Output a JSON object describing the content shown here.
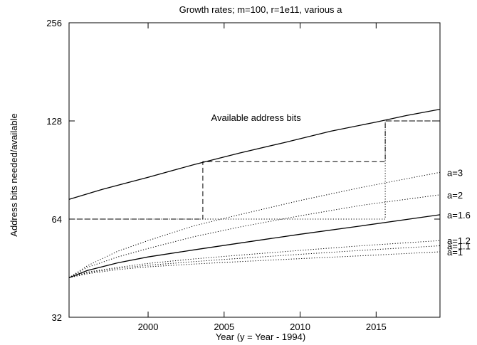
{
  "chart_data": {
    "type": "line",
    "title": "Growth rates; m=100, r=1e11, various a",
    "xlabel": "Year (y = Year - 1994)",
    "ylabel": "Address bits needed/available",
    "xlim": [
      1994.8,
      2019.2
    ],
    "ylim": [
      32,
      256
    ],
    "y_scale": "log2",
    "x_ticks": [
      2000,
      2005,
      2010,
      2015
    ],
    "y_ticks": [
      32,
      64,
      128,
      256
    ],
    "grid": false,
    "annotations": [
      {
        "text": "Available address bits",
        "x": 2007.1,
        "y": 128
      }
    ],
    "series": [
      {
        "name": "Available address bits",
        "style": "solid",
        "x": [
          1994.8,
          1997,
          2000,
          2003,
          2006,
          2009,
          2012,
          2015,
          2017,
          2019.2
        ],
        "y": [
          73.6,
          79,
          86,
          94,
          102,
          110,
          119,
          127,
          133,
          139
        ]
      },
      {
        "name": "",
        "style": "dashed",
        "x": [
          1994.8,
          2003.6,
          2003.6,
          2015.6,
          2015.6,
          2019.2
        ],
        "y": [
          64,
          64,
          96,
          96,
          128,
          128
        ]
      },
      {
        "name": "",
        "style": "dotted",
        "x": [
          1994.8,
          2015.6,
          2015.6,
          2019.2
        ],
        "y": [
          64,
          64,
          128,
          128
        ]
      },
      {
        "name": "a=3",
        "style": "dotted",
        "x": [
          1994.8,
          1996,
          1998,
          2000,
          2003,
          2006,
          2010,
          2014,
          2019.2
        ],
        "y": [
          42.3,
          46,
          51,
          55,
          61,
          66,
          73,
          80,
          89
        ]
      },
      {
        "name": "a=2",
        "style": "dotted",
        "x": [
          1994.8,
          1996,
          1998,
          2000,
          2003,
          2006,
          2010,
          2014,
          2019.2
        ],
        "y": [
          42.3,
          45.5,
          49,
          52,
          56.5,
          60.5,
          65.5,
          70.5,
          76
        ]
      },
      {
        "name": "a=1.6",
        "style": "solid",
        "x": [
          1994.8,
          1996,
          1998,
          2000,
          2003,
          2006,
          2010,
          2014,
          2019.2
        ],
        "y": [
          42.3,
          44.5,
          47,
          49,
          51.5,
          54,
          57.5,
          61,
          66
        ]
      },
      {
        "name": "a=1.2",
        "style": "dotted",
        "x": [
          1994.8,
          1996,
          1998,
          2000,
          2003,
          2006,
          2010,
          2014,
          2019.2
        ],
        "y": [
          42.3,
          44,
          45.5,
          46.8,
          48.3,
          49.6,
          51.3,
          53,
          55
        ]
      },
      {
        "name": "a=1.1",
        "style": "dotted",
        "x": [
          1994.8,
          1996,
          1998,
          2000,
          2003,
          2006,
          2010,
          2014,
          2019.2
        ],
        "y": [
          42.3,
          43.8,
          45.2,
          46.2,
          47.4,
          48.5,
          49.9,
          51.3,
          53
        ]
      },
      {
        "name": "a=1",
        "style": "dotted",
        "x": [
          1994.8,
          1996,
          1998,
          2000,
          2003,
          2006,
          2010,
          2014,
          2019.2
        ],
        "y": [
          42.3,
          43.5,
          44.8,
          45.7,
          46.6,
          47.4,
          48.4,
          49.4,
          50.8
        ]
      }
    ]
  }
}
